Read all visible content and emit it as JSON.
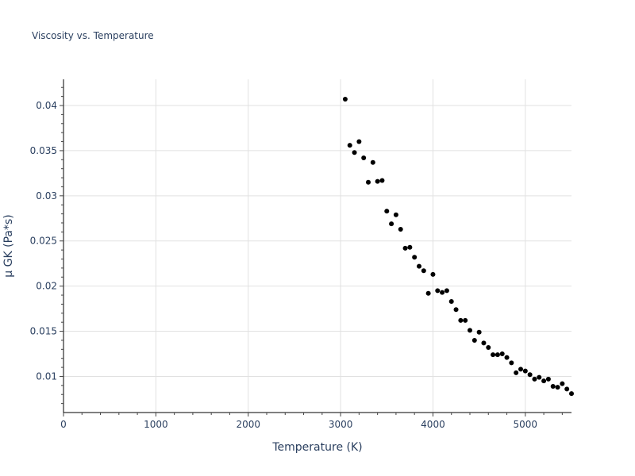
{
  "chart_data": {
    "type": "scatter",
    "title": "Viscosity vs. Temperature",
    "xlabel": "Temperature (K)",
    "ylabel": "μ GK (Pa*s)",
    "xlim": [
      0,
      5500
    ],
    "ylim": [
      0.006,
      0.0429
    ],
    "grid": true,
    "legend": null,
    "xticks": [
      0,
      1000,
      2000,
      3000,
      4000,
      5000
    ],
    "yticks": [
      0.01,
      0.015,
      0.02,
      0.025,
      0.03,
      0.035,
      0.04
    ],
    "xtick_labels": [
      "0",
      "1000",
      "2000",
      "3000",
      "4000",
      "5000"
    ],
    "ytick_labels": [
      "0.01",
      "0.015",
      "0.02",
      "0.025",
      "0.03",
      "0.035",
      "0.04"
    ],
    "marker_color": "#000000",
    "series": [
      {
        "name": "μ GK",
        "x": [
          3050,
          3100,
          3150,
          3200,
          3250,
          3300,
          3350,
          3400,
          3450,
          3500,
          3550,
          3600,
          3650,
          3700,
          3750,
          3800,
          3850,
          3900,
          3950,
          4000,
          4050,
          4100,
          4150,
          4200,
          4250,
          4300,
          4350,
          4400,
          4450,
          4500,
          4550,
          4600,
          4650,
          4700,
          4750,
          4800,
          4850,
          4900,
          4950,
          5000,
          5050,
          5100,
          5150,
          5200,
          5250,
          5300,
          5350,
          5400,
          5450,
          5500
        ],
        "y": [
          0.0407,
          0.0356,
          0.0348,
          0.036,
          0.0342,
          0.0315,
          0.0337,
          0.0316,
          0.0317,
          0.0283,
          0.0269,
          0.0279,
          0.0263,
          0.0242,
          0.0243,
          0.0232,
          0.0222,
          0.0217,
          0.0192,
          0.0213,
          0.0195,
          0.0193,
          0.0195,
          0.0183,
          0.0174,
          0.0162,
          0.0162,
          0.0151,
          0.014,
          0.0149,
          0.0137,
          0.0132,
          0.0124,
          0.0124,
          0.0125,
          0.0121,
          0.0115,
          0.0104,
          0.0108,
          0.0106,
          0.0102,
          0.0097,
          0.0099,
          0.0095,
          0.0097,
          0.0089,
          0.0088,
          0.0092,
          0.0086,
          0.0081
        ]
      }
    ]
  }
}
